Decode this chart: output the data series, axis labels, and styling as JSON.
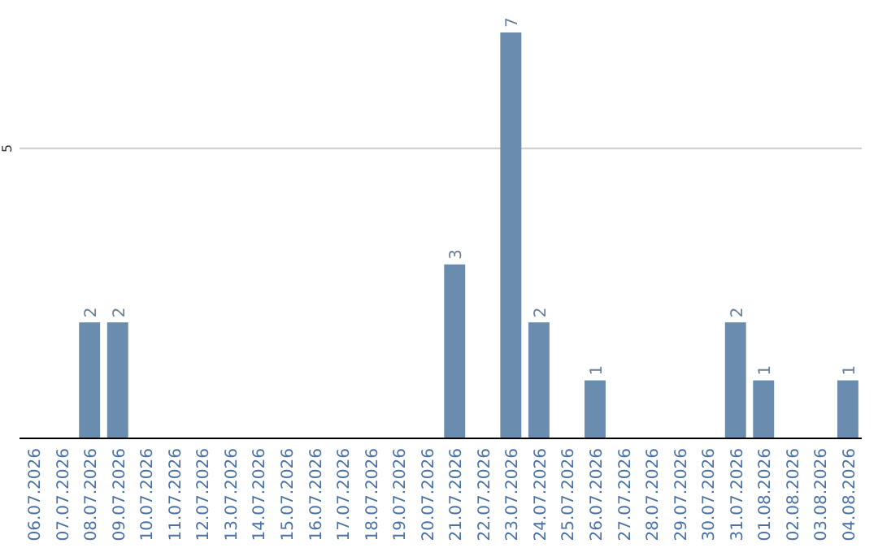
{
  "chart_data": {
    "type": "bar",
    "categories": [
      "06.07.2026",
      "07.07.2026",
      "08.07.2026",
      "09.07.2026",
      "10.07.2026",
      "11.07.2026",
      "12.07.2026",
      "13.07.2026",
      "14.07.2026",
      "15.07.2026",
      "16.07.2026",
      "17.07.2026",
      "18.07.2026",
      "19.07.2026",
      "20.07.2026",
      "21.07.2026",
      "22.07.2026",
      "23.07.2026",
      "24.07.2026",
      "25.07.2026",
      "26.07.2026",
      "27.07.2026",
      "28.07.2026",
      "29.07.2026",
      "30.07.2026",
      "31.07.2026",
      "01.08.2026",
      "02.08.2026",
      "03.08.2026",
      "04.08.2026"
    ],
    "values": [
      0,
      0,
      2,
      2,
      0,
      0,
      0,
      0,
      0,
      0,
      0,
      0,
      0,
      0,
      0,
      3,
      0,
      7,
      2,
      0,
      1,
      0,
      0,
      0,
      0,
      2,
      1,
      0,
      0,
      1
    ],
    "value_labels": [
      null,
      null,
      "2",
      "2",
      null,
      null,
      null,
      null,
      null,
      null,
      null,
      null,
      null,
      null,
      null,
      "3",
      null,
      "7",
      "2",
      null,
      "1",
      null,
      null,
      null,
      null,
      "2",
      "1",
      null,
      null,
      "1"
    ],
    "color": "#6a8caf",
    "ylim": [
      0,
      7
    ],
    "yticks": [
      5
    ],
    "grid": "y"
  }
}
